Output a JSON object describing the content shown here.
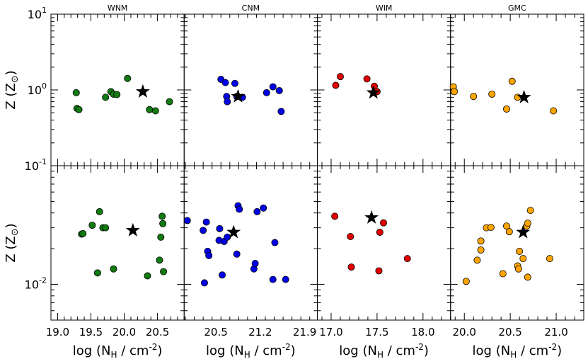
{
  "chart_data": {
    "type": "scatter",
    "y_axis": {
      "label_main": "Z (Z",
      "label_sun": "⊙",
      "label_close": ")",
      "scale": "log",
      "top_ylim": [
        0.1,
        10
      ],
      "bottom_ylim": [
        0.005,
        0.1
      ],
      "tick_labels": [
        {
          "base": "10",
          "exp": "1",
          "value": 10,
          "row": "top"
        },
        {
          "base": "10",
          "exp": "0",
          "value": 1,
          "row": "top"
        },
        {
          "base": "10",
          "exp": "-1",
          "value": 0.1,
          "row": "top"
        },
        {
          "base": "10",
          "exp": "-2",
          "value": 0.01,
          "row": "bottom"
        }
      ]
    },
    "x_axis_label": {
      "main": "log (N",
      "sub": "H",
      "mid": " / cm",
      "sup": "-2",
      "close": ")"
    },
    "panels": [
      {
        "name": "WNM",
        "color": "#117a11",
        "xlim": [
          18.9,
          20.9
        ],
        "xticks": [
          19.0,
          19.5,
          20.0,
          20.5
        ],
        "xtick_labels": [
          "19.0",
          "19.5",
          "20.0",
          "20.5"
        ],
        "top_points": [
          [
            19.28,
            0.92
          ],
          [
            19.29,
            0.57
          ],
          [
            19.32,
            0.55
          ],
          [
            19.72,
            0.8
          ],
          [
            19.8,
            0.95
          ],
          [
            19.84,
            0.88
          ],
          [
            19.89,
            0.87
          ],
          [
            20.05,
            1.42
          ],
          [
            20.38,
            0.55
          ],
          [
            20.47,
            0.53
          ],
          [
            20.68,
            0.7
          ]
        ],
        "top_star": [
          20.28,
          0.95
        ],
        "bottom_points": [
          [
            19.36,
            0.0265
          ],
          [
            19.38,
            0.0268
          ],
          [
            19.52,
            0.0315
          ],
          [
            19.6,
            0.0125
          ],
          [
            19.63,
            0.041
          ],
          [
            19.68,
            0.03
          ],
          [
            19.72,
            0.03
          ],
          [
            19.84,
            0.0135
          ],
          [
            20.35,
            0.0118
          ],
          [
            20.53,
            0.016
          ],
          [
            20.55,
            0.025
          ],
          [
            20.57,
            0.0375
          ],
          [
            20.58,
            0.0325
          ],
          [
            20.59,
            0.0128
          ]
        ],
        "bottom_star": [
          20.13,
          0.0285
        ]
      },
      {
        "name": "CNM",
        "color": "#0000e6",
        "xlim": [
          20.0,
          22.1
        ],
        "xticks": [
          20.5,
          21.2,
          21.9
        ],
        "xtick_labels": [
          "20.5",
          "21.2",
          "21.9"
        ],
        "top_points": [
          [
            20.58,
            1.38
          ],
          [
            20.65,
            1.25
          ],
          [
            20.67,
            0.82
          ],
          [
            20.68,
            0.7
          ],
          [
            20.8,
            1.22
          ],
          [
            20.83,
            0.82
          ],
          [
            20.92,
            0.8
          ],
          [
            21.3,
            0.92
          ],
          [
            21.4,
            1.1
          ],
          [
            21.5,
            0.98
          ],
          [
            21.53,
            0.52
          ]
        ],
        "top_star": [
          20.85,
          0.82
        ],
        "bottom_points": [
          [
            20.05,
            0.0345
          ],
          [
            20.3,
            0.0285
          ],
          [
            20.32,
            0.0103
          ],
          [
            20.35,
            0.0335
          ],
          [
            20.37,
            0.019
          ],
          [
            20.39,
            0.0175
          ],
          [
            20.55,
            0.0235
          ],
          [
            20.56,
            0.0295
          ],
          [
            20.6,
            0.012
          ],
          [
            20.63,
            0.023
          ],
          [
            20.68,
            0.025
          ],
          [
            20.83,
            0.018
          ],
          [
            20.85,
            0.046
          ],
          [
            20.87,
            0.043
          ],
          [
            21.1,
            0.0135
          ],
          [
            21.12,
            0.015
          ],
          [
            21.15,
            0.041
          ],
          [
            21.25,
            0.044
          ],
          [
            21.4,
            0.011
          ],
          [
            21.43,
            0.0225
          ],
          [
            21.6,
            0.011
          ]
        ],
        "bottom_star": [
          20.78,
          0.0275
        ]
      },
      {
        "name": "WIM",
        "color": "#e00000",
        "xlim": [
          16.85,
          18.3
        ],
        "xticks": [
          17.0,
          17.5,
          18.0
        ],
        "xtick_labels": [
          "17.0",
          "17.5",
          "18.0"
        ],
        "top_points": [
          [
            17.05,
            1.15
          ],
          [
            17.1,
            1.5
          ],
          [
            17.39,
            1.4
          ],
          [
            17.47,
            1.12
          ],
          [
            17.5,
            0.95
          ]
        ],
        "top_star": [
          17.46,
          0.92
        ],
        "bottom_points": [
          [
            17.04,
            0.0375
          ],
          [
            17.21,
            0.0253
          ],
          [
            17.22,
            0.014
          ],
          [
            17.52,
            0.013
          ],
          [
            17.53,
            0.0275
          ],
          [
            17.57,
            0.033
          ],
          [
            17.83,
            0.0165
          ]
        ],
        "bottom_star": [
          17.44,
          0.0365
        ]
      },
      {
        "name": "GMC",
        "color": "#ffa500",
        "xlim": [
          19.85,
          21.3
        ],
        "xticks": [
          20.0,
          20.5,
          21.0
        ],
        "xtick_labels": [
          "20.0",
          "20.5",
          "21.0"
        ],
        "top_points": [
          [
            19.88,
            1.1
          ],
          [
            19.89,
            0.95
          ],
          [
            20.1,
            0.82
          ],
          [
            20.3,
            0.88
          ],
          [
            20.46,
            0.56
          ],
          [
            20.52,
            1.3
          ],
          [
            20.58,
            0.8
          ],
          [
            20.97,
            0.53
          ]
        ],
        "top_star": [
          20.65,
          0.8
        ],
        "bottom_points": [
          [
            20.02,
            0.0106
          ],
          [
            20.14,
            0.016
          ],
          [
            20.18,
            0.0195
          ],
          [
            20.18,
            0.0232
          ],
          [
            20.24,
            0.03
          ],
          [
            20.29,
            0.0302
          ],
          [
            20.42,
            0.0123
          ],
          [
            20.46,
            0.031
          ],
          [
            20.49,
            0.0278
          ],
          [
            20.58,
            0.0143
          ],
          [
            20.59,
            0.0135
          ],
          [
            20.6,
            0.019
          ],
          [
            20.64,
            0.0165
          ],
          [
            20.68,
            0.031
          ],
          [
            20.69,
            0.0115
          ],
          [
            20.69,
            0.0328
          ],
          [
            20.72,
            0.042
          ],
          [
            20.93,
            0.0165
          ]
        ],
        "bottom_star": [
          20.64,
          0.0275
        ]
      }
    ]
  }
}
